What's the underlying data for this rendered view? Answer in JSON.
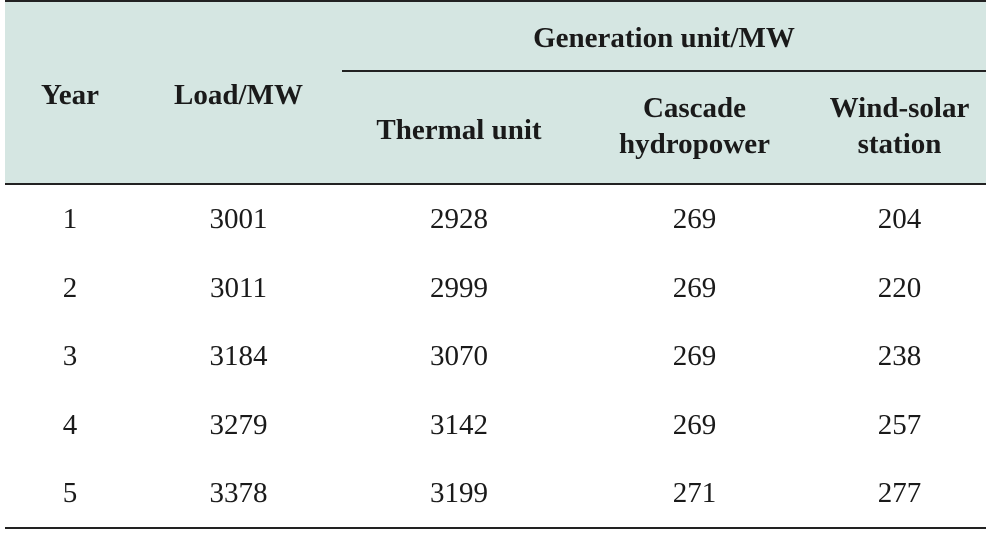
{
  "table": {
    "headers": {
      "year": "Year",
      "load": "Load/MW",
      "group": "Generation unit/MW",
      "thermal": "Thermal unit",
      "cascade_line1": "Cascade",
      "cascade_line2": "hydropower",
      "wind_line1": "Wind-solar",
      "wind_line2": "station"
    },
    "rows": [
      {
        "year": "1",
        "load": "3001",
        "thermal": "2928",
        "cascade": "269",
        "wind_solar": "204"
      },
      {
        "year": "2",
        "load": "3011",
        "thermal": "2999",
        "cascade": "269",
        "wind_solar": "220"
      },
      {
        "year": "3",
        "load": "3184",
        "thermal": "3070",
        "cascade": "269",
        "wind_solar": "238"
      },
      {
        "year": "4",
        "load": "3279",
        "thermal": "3142",
        "cascade": "269",
        "wind_solar": "257"
      },
      {
        "year": "5",
        "load": "3378",
        "thermal": "3199",
        "cascade": "271",
        "wind_solar": "277"
      }
    ]
  }
}
